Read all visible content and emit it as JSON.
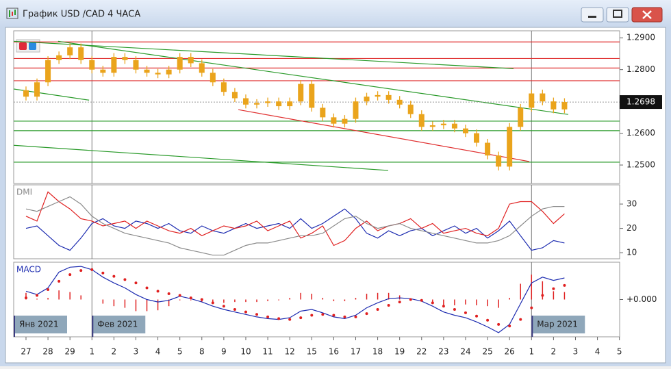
{
  "window": {
    "title": "График USD /CAD  4 ЧАСА"
  },
  "chart_data": [
    {
      "type": "candlestick",
      "color": "#eaa41c",
      "x": [
        0,
        0.5,
        1,
        1.5,
        2,
        2.5,
        3,
        3.5,
        4,
        4.5,
        5,
        5.5,
        6,
        6.5,
        7,
        7.5,
        8,
        8.5,
        9,
        9.5,
        10,
        10.5,
        11,
        11.5,
        12,
        12.5,
        13,
        13.5,
        14,
        14.5,
        15,
        15.5,
        16,
        16.5,
        17,
        17.5,
        18,
        18.5,
        19,
        19.5,
        20,
        20.5,
        21,
        21.5,
        22,
        22.5,
        23,
        23.5,
        24,
        24.5
      ],
      "open": [
        1.2735,
        1.2715,
        1.276,
        1.283,
        1.2845,
        1.287,
        1.283,
        1.28,
        1.279,
        1.284,
        1.283,
        1.28,
        1.279,
        1.2785,
        1.28,
        1.284,
        1.282,
        1.279,
        1.276,
        1.273,
        1.271,
        1.269,
        1.2695,
        1.27,
        1.2685,
        1.27,
        1.2755,
        1.268,
        1.265,
        1.263,
        1.2645,
        1.27,
        1.2715,
        1.272,
        1.2705,
        1.269,
        1.266,
        1.262,
        1.2625,
        1.263,
        1.2615,
        1.26,
        1.257,
        1.253,
        1.2495,
        1.262,
        1.268,
        1.2725,
        1.27,
        1.2675
      ],
      "high": [
        1.2747,
        1.2772,
        1.2842,
        1.2857,
        1.2882,
        1.2882,
        1.2842,
        1.2812,
        1.2852,
        1.2852,
        1.2842,
        1.2812,
        1.2802,
        1.2812,
        1.2852,
        1.2852,
        1.2832,
        1.2802,
        1.2772,
        1.2742,
        1.2722,
        1.2707,
        1.2712,
        1.2712,
        1.2712,
        1.2767,
        1.2767,
        1.2692,
        1.2662,
        1.2657,
        1.2712,
        1.2727,
        1.2732,
        1.2732,
        1.2717,
        1.2702,
        1.2672,
        1.2637,
        1.2642,
        1.2642,
        1.2627,
        1.2612,
        1.2582,
        1.2542,
        1.2632,
        1.2692,
        1.2737,
        1.2737,
        1.2712,
        1.271
      ],
      "low": [
        1.2703,
        1.2703,
        1.2748,
        1.2818,
        1.2833,
        1.2818,
        1.2788,
        1.2778,
        1.2778,
        1.2818,
        1.2788,
        1.2778,
        1.2773,
        1.2773,
        1.2788,
        1.2808,
        1.2778,
        1.2748,
        1.2718,
        1.2698,
        1.2678,
        1.2678,
        1.2683,
        1.2673,
        1.2673,
        1.2688,
        1.2668,
        1.2638,
        1.2618,
        1.2618,
        1.2633,
        1.2688,
        1.2703,
        1.2693,
        1.2678,
        1.2648,
        1.2608,
        1.2608,
        1.2613,
        1.2603,
        1.2588,
        1.2558,
        1.2518,
        1.2483,
        1.2483,
        1.2608,
        1.2668,
        1.2688,
        1.2663,
        1.2663
      ],
      "close": [
        1.2715,
        1.276,
        1.283,
        1.2845,
        1.287,
        1.283,
        1.28,
        1.279,
        1.284,
        1.283,
        1.28,
        1.279,
        1.2785,
        1.28,
        1.284,
        1.282,
        1.279,
        1.276,
        1.273,
        1.271,
        1.269,
        1.2695,
        1.27,
        1.2685,
        1.27,
        1.2755,
        1.268,
        1.265,
        1.263,
        1.2645,
        1.27,
        1.2715,
        1.272,
        1.2705,
        1.269,
        1.266,
        1.262,
        1.2625,
        1.263,
        1.2615,
        1.26,
        1.257,
        1.253,
        1.2495,
        1.262,
        1.268,
        1.2725,
        1.27,
        1.2675,
        1.2698
      ],
      "xlim": [
        -0.56,
        27.01
      ],
      "ylim": [
        1.2442,
        1.2922
      ],
      "yticks": [
        {
          "value": 1.25,
          "label": "1.2500"
        },
        {
          "value": 1.26,
          "label": "1.2600"
        },
        {
          "value": 1.27,
          "label": "1.2700"
        },
        {
          "value": 1.28,
          "label": "1.2800"
        },
        {
          "value": 1.29,
          "label": "1.2900"
        }
      ],
      "last_price": 1.2698,
      "levels": [
        {
          "value": 1.2887,
          "color": "#e03030"
        },
        {
          "value": 1.2835,
          "color": "#e03030"
        },
        {
          "value": 1.2805,
          "color": "#e03030"
        },
        {
          "value": 1.2765,
          "color": "#e03030"
        },
        {
          "value": 1.2638,
          "color": "#2a9a2a"
        },
        {
          "value": 1.2608,
          "color": "#2a9a2a"
        },
        {
          "value": 1.2509,
          "color": "#2a9a2a"
        }
      ],
      "trendlines": [
        {
          "x": [
            -0.56,
            22.18
          ],
          "y": [
            1.2889,
            1.2803
          ],
          "color": "#2a9a2a"
        },
        {
          "x": [
            1.46,
            24.67
          ],
          "y": [
            1.2889,
            1.2659
          ],
          "color": "#2a9a2a"
        },
        {
          "x": [
            -0.56,
            2.87
          ],
          "y": [
            1.2739,
            1.2704
          ],
          "color": "#2a9a2a"
        },
        {
          "x": [
            -0.56,
            16.48
          ],
          "y": [
            1.2562,
            1.2483
          ],
          "color": "#2a9a2a"
        },
        {
          "x": [
            9.66,
            22.9
          ],
          "y": [
            1.2674,
            1.2511
          ],
          "color": "#e03030"
        }
      ],
      "separators": [
        3,
        23
      ]
    },
    {
      "type": "line",
      "title": "DMI",
      "xlim": [
        -0.56,
        27.01
      ],
      "ylim": [
        7.5,
        37.9
      ],
      "yticks": [
        10,
        20,
        30
      ],
      "series": [
        {
          "color": "#1c2bb0",
          "values": [
            20,
            21,
            17,
            13,
            11,
            16,
            22,
            24,
            21,
            20,
            23,
            22,
            20,
            22,
            19,
            18,
            21,
            19,
            18,
            20,
            22,
            20,
            21,
            22,
            20,
            24,
            20,
            22,
            25,
            28,
            24,
            18,
            16,
            19,
            17,
            19,
            20,
            17,
            19,
            21,
            18,
            20,
            16,
            19,
            23,
            17,
            11,
            12,
            15,
            14
          ]
        },
        {
          "color": "#e02020",
          "values": [
            25,
            23,
            35,
            31,
            28,
            24,
            23,
            21,
            22,
            23,
            20,
            23,
            21,
            19,
            18,
            20,
            17,
            19,
            21,
            20,
            21,
            23,
            19,
            21,
            23,
            16,
            18,
            21,
            13,
            15,
            20,
            23,
            19,
            21,
            22,
            24,
            20,
            22,
            18,
            19,
            20,
            18,
            17,
            20,
            30,
            31,
            31,
            27,
            22,
            26
          ]
        },
        {
          "color": "#8a8a8a",
          "values": [
            28,
            27,
            29,
            31,
            33,
            30,
            25,
            22,
            20,
            18,
            17,
            16,
            15,
            14,
            12,
            11,
            10,
            9,
            9,
            11,
            13,
            14,
            14,
            15,
            16,
            17,
            17,
            18,
            21,
            24,
            25,
            22,
            20,
            21,
            22,
            20,
            19,
            18,
            17,
            16,
            15,
            14,
            14,
            15,
            17,
            21,
            25,
            28,
            29,
            29
          ]
        }
      ]
    },
    {
      "type": "macd",
      "title": "MACD",
      "xlim": [
        -0.56,
        27.01
      ],
      "ylim": [
        -0.0045,
        0.0045
      ],
      "yticks": [
        {
          "value": 0,
          "label": "+0.000"
        }
      ],
      "xticks": [
        {
          "value": 0,
          "label": "27"
        },
        {
          "value": 1,
          "label": "28"
        },
        {
          "value": 2,
          "label": "29"
        },
        {
          "value": 3,
          "label": "1"
        },
        {
          "value": 4,
          "label": "2"
        },
        {
          "value": 5,
          "label": "3"
        },
        {
          "value": 6,
          "label": "4"
        },
        {
          "value": 7,
          "label": "5"
        },
        {
          "value": 8,
          "label": "8"
        },
        {
          "value": 9,
          "label": "9"
        },
        {
          "value": 10,
          "label": "10"
        },
        {
          "value": 11,
          "label": "11"
        },
        {
          "value": 12,
          "label": "12"
        },
        {
          "value": 13,
          "label": "15"
        },
        {
          "value": 14,
          "label": "16"
        },
        {
          "value": 15,
          "label": "17"
        },
        {
          "value": 16,
          "label": "18"
        },
        {
          "value": 17,
          "label": "19"
        },
        {
          "value": 18,
          "label": "22"
        },
        {
          "value": 19,
          "label": "23"
        },
        {
          "value": 20,
          "label": "24"
        },
        {
          "value": 21,
          "label": "25"
        },
        {
          "value": 22,
          "label": "26"
        },
        {
          "value": 23,
          "label": "1"
        },
        {
          "value": 24,
          "label": "2"
        },
        {
          "value": 25,
          "label": "3"
        },
        {
          "value": 26,
          "label": "4"
        },
        {
          "value": 27,
          "label": "5"
        }
      ],
      "month_labels": [
        {
          "value": -0.56,
          "label": "Янв 2021"
        },
        {
          "value": 3,
          "label": "Фев 2021"
        },
        {
          "value": 23,
          "label": "Мар 2021"
        }
      ],
      "series": [
        {
          "style": "bars",
          "color": "#e02020",
          "values": [
            0.0008,
            0.0001,
            0.0002,
            0.0011,
            0.0009,
            0.0005,
            0.0,
            -0.0005,
            -0.0008,
            -0.001,
            -0.0014,
            -0.0014,
            -0.0013,
            -0.0008,
            -0.0001,
            -0.0001,
            -0.0003,
            -0.0004,
            -0.0004,
            -0.0003,
            -0.0003,
            -0.0003,
            -0.0002,
            -0.0001,
            0.0002,
            0.0008,
            0.0007,
            0.0002,
            -0.0002,
            -0.0002,
            0.0002,
            0.0007,
            0.0008,
            0.0008,
            0.0005,
            0.0001,
            -0.0001,
            -0.0004,
            -0.0007,
            -0.0007,
            -0.0006,
            -0.0007,
            -0.0008,
            -0.001,
            0.0002,
            0.0019,
            0.003,
            0.0022,
            0.001,
            0.0009
          ]
        },
        {
          "style": "solid",
          "color": "#1c2bb0",
          "values": [
            0.001,
            0.0006,
            0.0014,
            0.0033,
            0.0039,
            0.004,
            0.0036,
            0.0027,
            0.002,
            0.0014,
            0.0006,
            0.0,
            -0.0003,
            -0.0001,
            0.0004,
            0.0001,
            -0.0003,
            -0.0008,
            -0.0012,
            -0.0015,
            -0.0018,
            -0.0021,
            -0.0023,
            -0.0024,
            -0.0022,
            -0.0014,
            -0.0012,
            -0.0016,
            -0.0021,
            -0.0023,
            -0.0019,
            -0.001,
            -0.0004,
            0.0001,
            0.0002,
            0.0001,
            -0.0002,
            -0.0008,
            -0.0015,
            -0.0019,
            -0.0022,
            -0.0027,
            -0.0033,
            -0.004,
            -0.003,
            -0.0005,
            0.002,
            0.0027,
            0.0023,
            0.0026
          ]
        },
        {
          "style": "dots",
          "color": "#e02020",
          "values": [
            0.0002,
            0.0005,
            0.0012,
            0.0022,
            0.003,
            0.0035,
            0.0036,
            0.0032,
            0.0028,
            0.0024,
            0.002,
            0.0014,
            0.001,
            0.0007,
            0.0005,
            0.0002,
            0.0,
            -0.0004,
            -0.0008,
            -0.0012,
            -0.0015,
            -0.0018,
            -0.0021,
            -0.0023,
            -0.0024,
            -0.0022,
            -0.0019,
            -0.0018,
            -0.0019,
            -0.0021,
            -0.0021,
            -0.0017,
            -0.0012,
            -0.0007,
            -0.0003,
            0.0,
            -0.0001,
            -0.0004,
            -0.0008,
            -0.0012,
            -0.0016,
            -0.002,
            -0.0025,
            -0.003,
            -0.0032,
            -0.0024,
            -0.001,
            0.0005,
            0.0013,
            0.0017
          ]
        }
      ]
    }
  ]
}
